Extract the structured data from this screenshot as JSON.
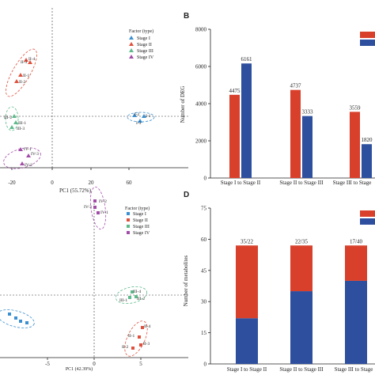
{
  "colors": {
    "stage1": "#3a8fd0",
    "stage2": "#e0503c",
    "stage3": "#5dba8a",
    "stage4": "#a24ca8",
    "red_bar": "#d8402c",
    "blue_bar": "#2e4f9e"
  },
  "chart_data": [
    {
      "type": "scatter",
      "panel": "A",
      "xlabel": "PC1 (55.72%)",
      "x_ticks": [
        "-20",
        "0",
        "20",
        "60"
      ],
      "legend_title": "Factor (type)",
      "legend": [
        "Stage I",
        "Stage II",
        "Stage III",
        "Stage IV"
      ],
      "point_labels": {
        "stage1": [
          "I-2",
          "I-1",
          "I-3"
        ],
        "stage2": [
          "II-3",
          "II-4",
          "II-1",
          "II-2"
        ],
        "stage3": [
          "III-2",
          "III-1",
          "III-3"
        ],
        "stage4": [
          "IV-1",
          "IV-3",
          "IV-2"
        ]
      }
    },
    {
      "type": "bar",
      "panel": "B",
      "ylabel": "Number of DEG",
      "ylim": [
        0,
        8000
      ],
      "y_ticks": [
        "0",
        "2000",
        "4000",
        "6000",
        "8000"
      ],
      "categories": [
        "Stage I to Stage II",
        "Stage II to Stage III",
        "Stage III to Stage"
      ],
      "series": [
        {
          "color": "red",
          "values": [
            4475,
            4737,
            3559
          ]
        },
        {
          "color": "blue",
          "values": [
            6161,
            3333,
            1820
          ]
        }
      ],
      "data_labels": [
        [
          "4475",
          "6161"
        ],
        [
          "4737",
          "3333"
        ],
        [
          "3559",
          "1820"
        ]
      ]
    },
    {
      "type": "scatter",
      "panel": "C",
      "xlabel": "PC1 (42.39%)",
      "x_ticks": [
        "-5",
        "0",
        "5"
      ],
      "legend_title": "Factor (type)",
      "legend": [
        "Stage I",
        "Stage II",
        "Stage III",
        "Stage IV"
      ],
      "point_labels": {
        "stage4": [
          "IV-2",
          "IV-3",
          "IV-1"
        ],
        "stage3": [
          "III-4",
          "III-1",
          "III-2"
        ],
        "stage2": [
          "II-4",
          "II-1",
          "II-3",
          "II-2"
        ]
      }
    },
    {
      "type": "bar",
      "panel": "D",
      "stacked": true,
      "ylabel": "Number of metabolites",
      "ylim": [
        0,
        75
      ],
      "y_ticks": [
        "0",
        "15",
        "30",
        "45",
        "60",
        "75"
      ],
      "categories": [
        "Stage I to Stage II",
        "Stage II to Stage III",
        "Stage III to Stage"
      ],
      "series": [
        {
          "color": "blue",
          "values": [
            22,
            35,
            40
          ]
        },
        {
          "color": "red",
          "values": [
            35,
            22,
            17
          ]
        }
      ],
      "top_labels": [
        "35/22",
        "22/35",
        "17/40"
      ]
    }
  ],
  "panel_labels": {
    "b": "B",
    "d": "D"
  }
}
